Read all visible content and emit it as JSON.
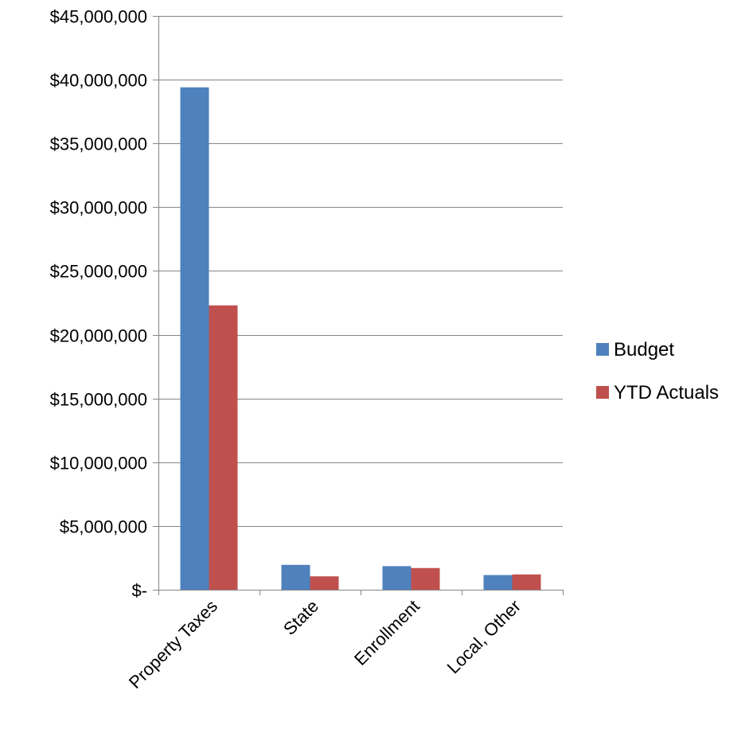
{
  "chart_data": {
    "type": "bar",
    "categories": [
      "Property Taxes",
      "State",
      "Enrollment",
      "Local, Other"
    ],
    "series": [
      {
        "name": "Budget",
        "color": "#4F81BD",
        "values": [
          39400000,
          1950000,
          1850000,
          1150000
        ]
      },
      {
        "name": "YTD Actuals",
        "color": "#C0504D",
        "values": [
          22300000,
          1050000,
          1700000,
          1200000
        ]
      }
    ],
    "ylim": [
      0,
      45000000
    ],
    "yticks": [
      0,
      5000000,
      10000000,
      15000000,
      20000000,
      25000000,
      30000000,
      35000000,
      40000000,
      45000000
    ],
    "ytick_labels": [
      "$-",
      "$5,000,000",
      "$10,000,000",
      "$15,000,000",
      "$20,000,000",
      "$25,000,000",
      "$30,000,000",
      "$35,000,000",
      "$40,000,000",
      "$45,000,000"
    ],
    "grid": true,
    "legend_position": "right",
    "title": "",
    "xlabel": "",
    "ylabel": ""
  }
}
